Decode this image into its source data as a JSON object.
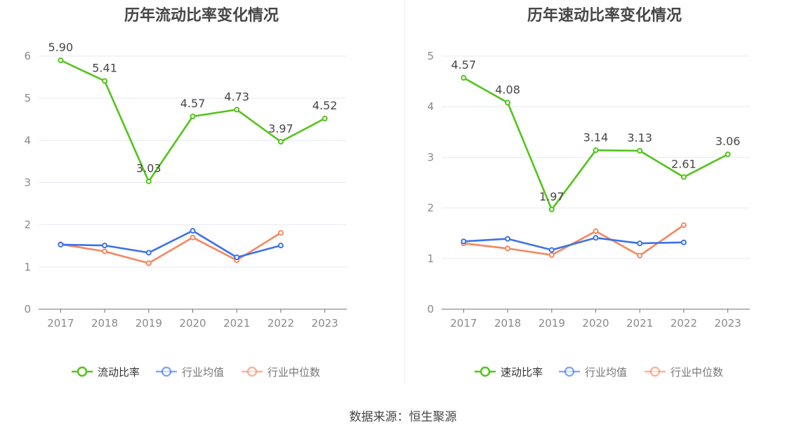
{
  "charts": [
    {
      "title": "历年流动比率变化情况",
      "chart_data": {
        "type": "line",
        "title": "历年流动比率变化情况",
        "categories": [
          "2017",
          "2018",
          "2019",
          "2020",
          "2021",
          "2022",
          "2023"
        ],
        "ylim": [
          0,
          6
        ],
        "yticks": [
          0,
          1,
          2,
          3,
          4,
          5,
          6
        ],
        "grid": true,
        "legend": "bottom",
        "series": [
          {
            "name": "流动比率",
            "color": "#52c41a",
            "values": [
              5.9,
              5.41,
              3.03,
              4.57,
              4.73,
              3.97,
              4.52
            ],
            "labels": [
              "5.90",
              "5.41",
              "3.03",
              "4.57",
              "4.73",
              "3.97",
              "4.52"
            ],
            "show_labels": true
          },
          {
            "name": "行业均值",
            "color": "#3b72e8",
            "values": [
              1.53,
              1.51,
              1.34,
              1.86,
              1.23,
              1.51,
              null
            ],
            "show_labels": false
          },
          {
            "name": "行业中位数",
            "color": "#f5875f",
            "values": [
              1.54,
              1.37,
              1.09,
              1.7,
              1.16,
              1.81,
              null
            ],
            "show_labels": false
          }
        ]
      }
    },
    {
      "title": "历年速动比率变化情况",
      "chart_data": {
        "type": "line",
        "title": "历年速动比率变化情况",
        "categories": [
          "2017",
          "2018",
          "2019",
          "2020",
          "2021",
          "2022",
          "2023"
        ],
        "ylim": [
          0,
          5
        ],
        "yticks": [
          0,
          1,
          2,
          3,
          4,
          5
        ],
        "grid": true,
        "legend": "bottom",
        "series": [
          {
            "name": "速动比率",
            "color": "#52c41a",
            "values": [
              4.57,
              4.08,
              1.97,
              3.14,
              3.13,
              2.61,
              3.06
            ],
            "labels": [
              "4.57",
              "4.08",
              "1.97",
              "3.14",
              "3.13",
              "2.61",
              "3.06"
            ],
            "show_labels": true
          },
          {
            "name": "行业均值",
            "color": "#3b72e8",
            "values": [
              1.34,
              1.39,
              1.17,
              1.41,
              1.3,
              1.32,
              null
            ],
            "show_labels": false
          },
          {
            "name": "行业中位数",
            "color": "#f5875f",
            "values": [
              1.3,
              1.2,
              1.07,
              1.54,
              1.06,
              1.66,
              null
            ],
            "show_labels": false
          }
        ]
      }
    }
  ],
  "source": "数据来源：恒生聚源"
}
